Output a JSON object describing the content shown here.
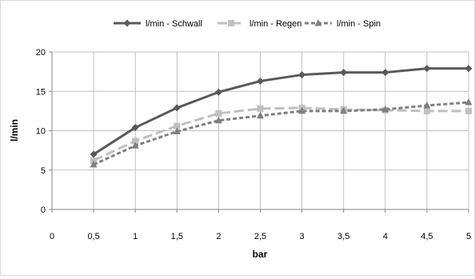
{
  "chart_data": {
    "type": "line",
    "x": [
      0.5,
      1,
      1.5,
      2,
      2.5,
      3,
      3.5,
      4,
      4.5,
      5
    ],
    "x_tick_labels": [
      "0",
      "0,5",
      "1",
      "1,5",
      "2",
      "2,5",
      "3",
      "3,5",
      "4",
      "4,5",
      "5"
    ],
    "xlim": [
      0,
      5
    ],
    "ylim": [
      0,
      20
    ],
    "y_ticks": [
      0,
      5,
      10,
      15,
      20
    ],
    "xlabel": "bar",
    "ylabel": "l/min",
    "grid": true,
    "legend_position": "top",
    "series": [
      {
        "name": "l/min - Schwall",
        "values": [
          7.0,
          10.4,
          12.9,
          14.9,
          16.3,
          17.1,
          17.4,
          17.4,
          17.9,
          17.9
        ],
        "color": "#595959",
        "line_style": "solid",
        "marker": "diamond"
      },
      {
        "name": "l/min - Regen",
        "values": [
          6.2,
          8.7,
          10.6,
          12.2,
          12.8,
          12.9,
          12.7,
          12.6,
          12.5,
          12.5
        ],
        "color": "#bfbfbf",
        "line_style": "long-dash",
        "marker": "square"
      },
      {
        "name": "l/min - Spin",
        "values": [
          5.7,
          8.1,
          9.9,
          11.3,
          11.9,
          12.5,
          12.5,
          12.7,
          13.2,
          13.6
        ],
        "color": "#7f7f7f",
        "line_style": "dash",
        "marker": "triangle"
      }
    ]
  }
}
